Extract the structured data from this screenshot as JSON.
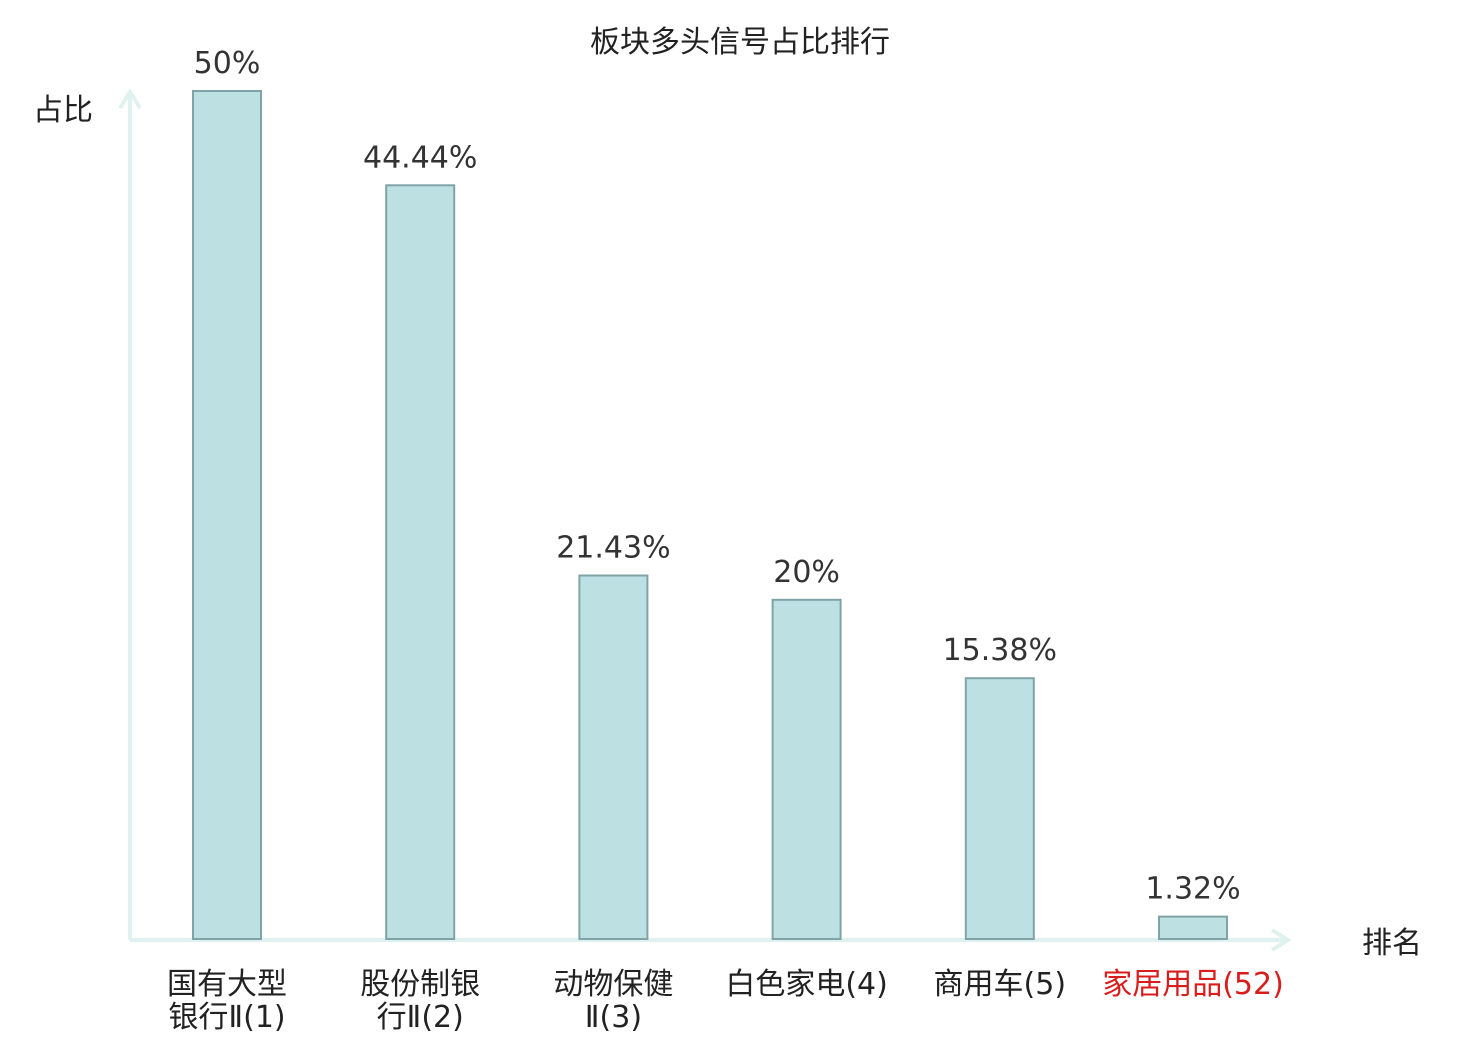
{
  "chart_data": {
    "type": "bar",
    "title": "板块多头信号占比排行",
    "ylabel": "占比",
    "xlabel": "排名",
    "ylim": [
      0,
      50
    ],
    "grid": false,
    "categories": [
      [
        "国有大型",
        "银行Ⅱ(1)"
      ],
      [
        "股份制银",
        "行Ⅱ(2)"
      ],
      [
        "动物保健",
        "Ⅱ(3)"
      ],
      [
        "白色家电(4)"
      ],
      [
        "商用车(5)"
      ],
      [
        "家居用品(52)"
      ]
    ],
    "values": [
      50,
      44.44,
      21.43,
      20,
      15.38,
      1.32
    ],
    "value_labels": [
      "50%",
      "44.44%",
      "21.43%",
      "20%",
      "15.38%",
      "1.32%"
    ],
    "highlight_index": 5,
    "colors": {
      "bar_fill": "#bde0e3",
      "bar_stroke": "#7fa3a7",
      "axis": "#e0f2ef",
      "text": "#222222",
      "highlight_text": "#d91c1c"
    }
  }
}
